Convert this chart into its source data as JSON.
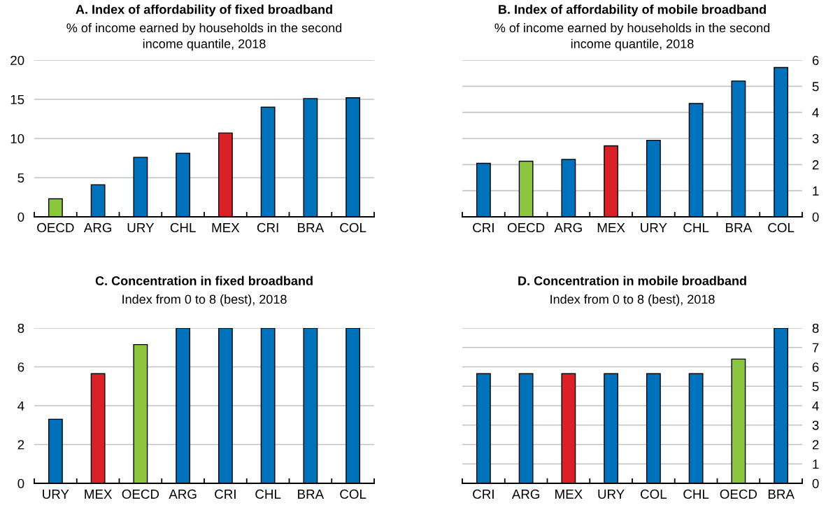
{
  "chart_data": [
    {
      "type": "bar",
      "title": "A. Index of affordability of fixed broadband",
      "subtitle": "% of income earned by households in the second\nincome quantile, 2018",
      "categories": [
        "OECD",
        "ARG",
        "URY",
        "CHL",
        "MEX",
        "CRI",
        "BRA",
        "COL"
      ],
      "values": [
        2.3,
        4.1,
        7.6,
        8.1,
        10.7,
        14.0,
        15.1,
        15.2
      ],
      "colors": [
        "#8cc63f",
        "#0072bc",
        "#0072bc",
        "#0072bc",
        "#da2128",
        "#0072bc",
        "#0072bc",
        "#0072bc"
      ],
      "ylim": [
        0,
        20
      ],
      "yticks": [
        0,
        5,
        10,
        15,
        20
      ],
      "grid": "y"
    },
    {
      "type": "bar",
      "title": "B. Index of affordability of mobile broadband",
      "subtitle": "% of income earned by households in the second\nincome quantile, 2018",
      "categories": [
        "CRI",
        "OECD",
        "ARG",
        "MEX",
        "URY",
        "CHL",
        "BRA",
        "COL"
      ],
      "values": [
        2.05,
        2.13,
        2.2,
        2.72,
        2.93,
        4.34,
        5.2,
        5.72
      ],
      "colors": [
        "#0072bc",
        "#8cc63f",
        "#0072bc",
        "#da2128",
        "#0072bc",
        "#0072bc",
        "#0072bc",
        "#0072bc"
      ],
      "ylim": [
        0,
        6
      ],
      "yticks": [
        0,
        1,
        2,
        3,
        4,
        5,
        6
      ],
      "grid": "y"
    },
    {
      "type": "bar",
      "title": "C. Concentration in fixed broadband",
      "subtitle": "Index from 0 to 8 (best), 2018",
      "categories": [
        "URY",
        "MEX",
        "OECD",
        "ARG",
        "CRI",
        "CHL",
        "BRA",
        "COL"
      ],
      "values": [
        3.3,
        5.65,
        7.15,
        8,
        8,
        8,
        8,
        8
      ],
      "colors": [
        "#0072bc",
        "#da2128",
        "#8cc63f",
        "#0072bc",
        "#0072bc",
        "#0072bc",
        "#0072bc",
        "#0072bc"
      ],
      "ylim": [
        0,
        8
      ],
      "yticks": [
        0,
        2,
        4,
        6,
        8
      ],
      "grid": "y"
    },
    {
      "type": "bar",
      "title": "D. Concentration in mobile broadband",
      "subtitle": "Index from 0 to 8 (best), 2018",
      "categories": [
        "CRI",
        "ARG",
        "MEX",
        "URY",
        "COL",
        "CHL",
        "OECD",
        "BRA"
      ],
      "values": [
        5.65,
        5.65,
        5.65,
        5.65,
        5.65,
        5.65,
        6.4,
        8
      ],
      "colors": [
        "#0072bc",
        "#0072bc",
        "#da2128",
        "#0072bc",
        "#0072bc",
        "#0072bc",
        "#8cc63f",
        "#0072bc"
      ],
      "ylim": [
        0,
        8
      ],
      "yticks": [
        0,
        1,
        2,
        3,
        4,
        5,
        6,
        7,
        8
      ],
      "grid": "y"
    }
  ]
}
